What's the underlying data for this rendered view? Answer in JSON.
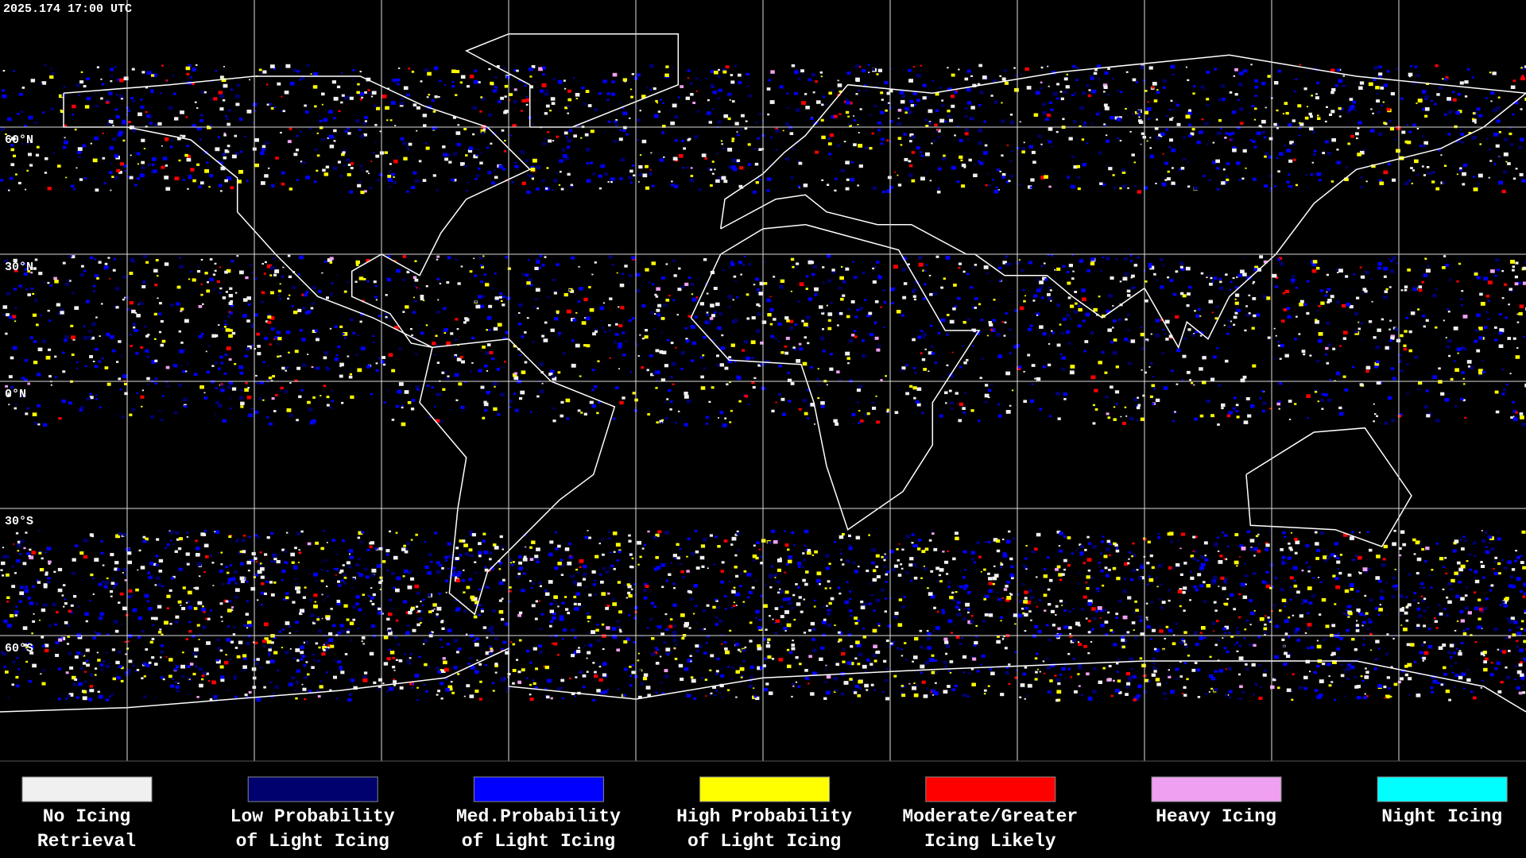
{
  "timestamp": "2025.174 17:00 UTC",
  "latitude_labels": [
    "60°N",
    "30°N",
    "0°N",
    "30°S",
    "60°S"
  ],
  "legend": [
    {
      "label_lines": [
        "No Icing",
        "Retrieval"
      ],
      "color": "#f0f0f0"
    },
    {
      "label_lines": [
        "Low Probability",
        "of Light Icing"
      ],
      "color": "#00006e"
    },
    {
      "label_lines": [
        "Med.Probability",
        "of Light Icing"
      ],
      "color": "#0000ff"
    },
    {
      "label_lines": [
        "High Probability",
        "of Light Icing"
      ],
      "color": "#ffff00"
    },
    {
      "label_lines": [
        "Moderate/Greater",
        "Icing Likely"
      ],
      "color": "#ff0000"
    },
    {
      "label_lines": [
        "Heavy Icing"
      ],
      "color": "#f0a0f0"
    },
    {
      "label_lines": [
        "Night Icing"
      ],
      "color": "#00ffff"
    }
  ]
}
